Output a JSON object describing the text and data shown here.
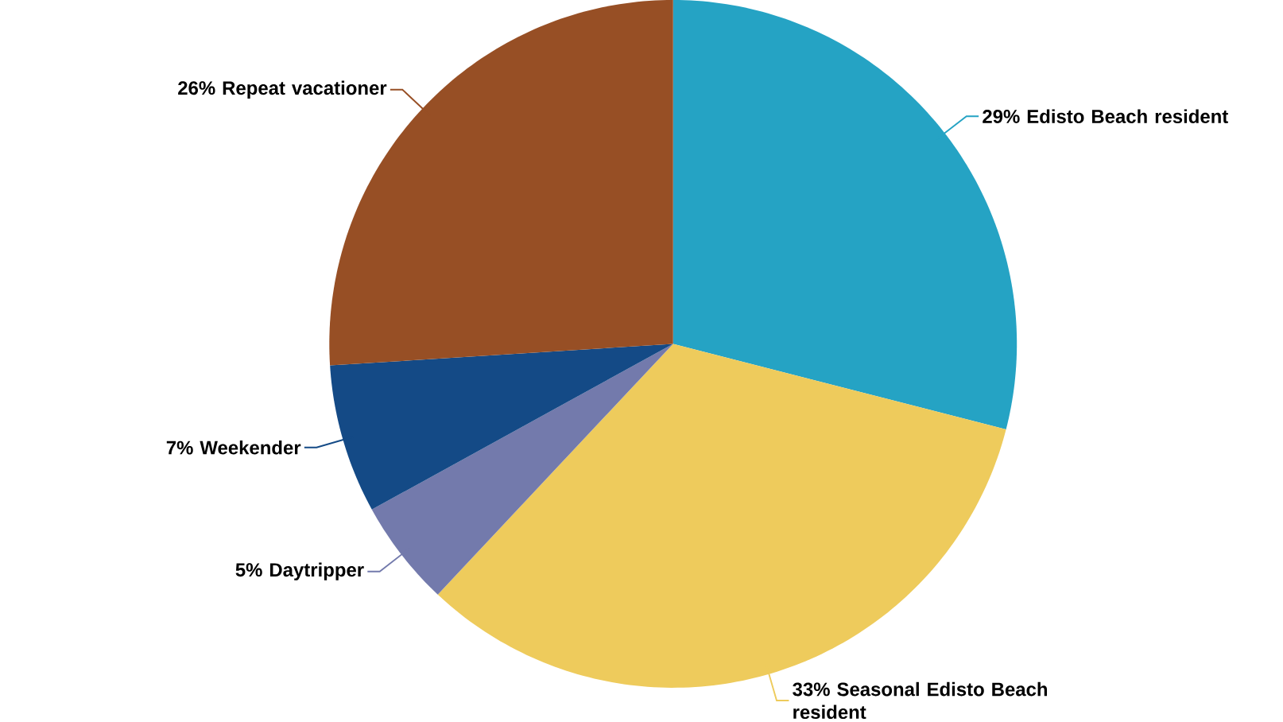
{
  "chart_data": {
    "type": "pie",
    "categories": [
      "Edisto Beach resident",
      "Seasonal Edisto Beach resident",
      "Daytripper",
      "Weekender",
      "Repeat vacationer"
    ],
    "values": [
      29,
      33,
      5,
      7,
      26
    ],
    "value_labels": [
      "29%",
      "33%",
      "5%",
      "7%",
      "26%"
    ],
    "colors": [
      "#25a3c4",
      "#eecb5c",
      "#737aac",
      "#144a86",
      "#974f25"
    ]
  }
}
